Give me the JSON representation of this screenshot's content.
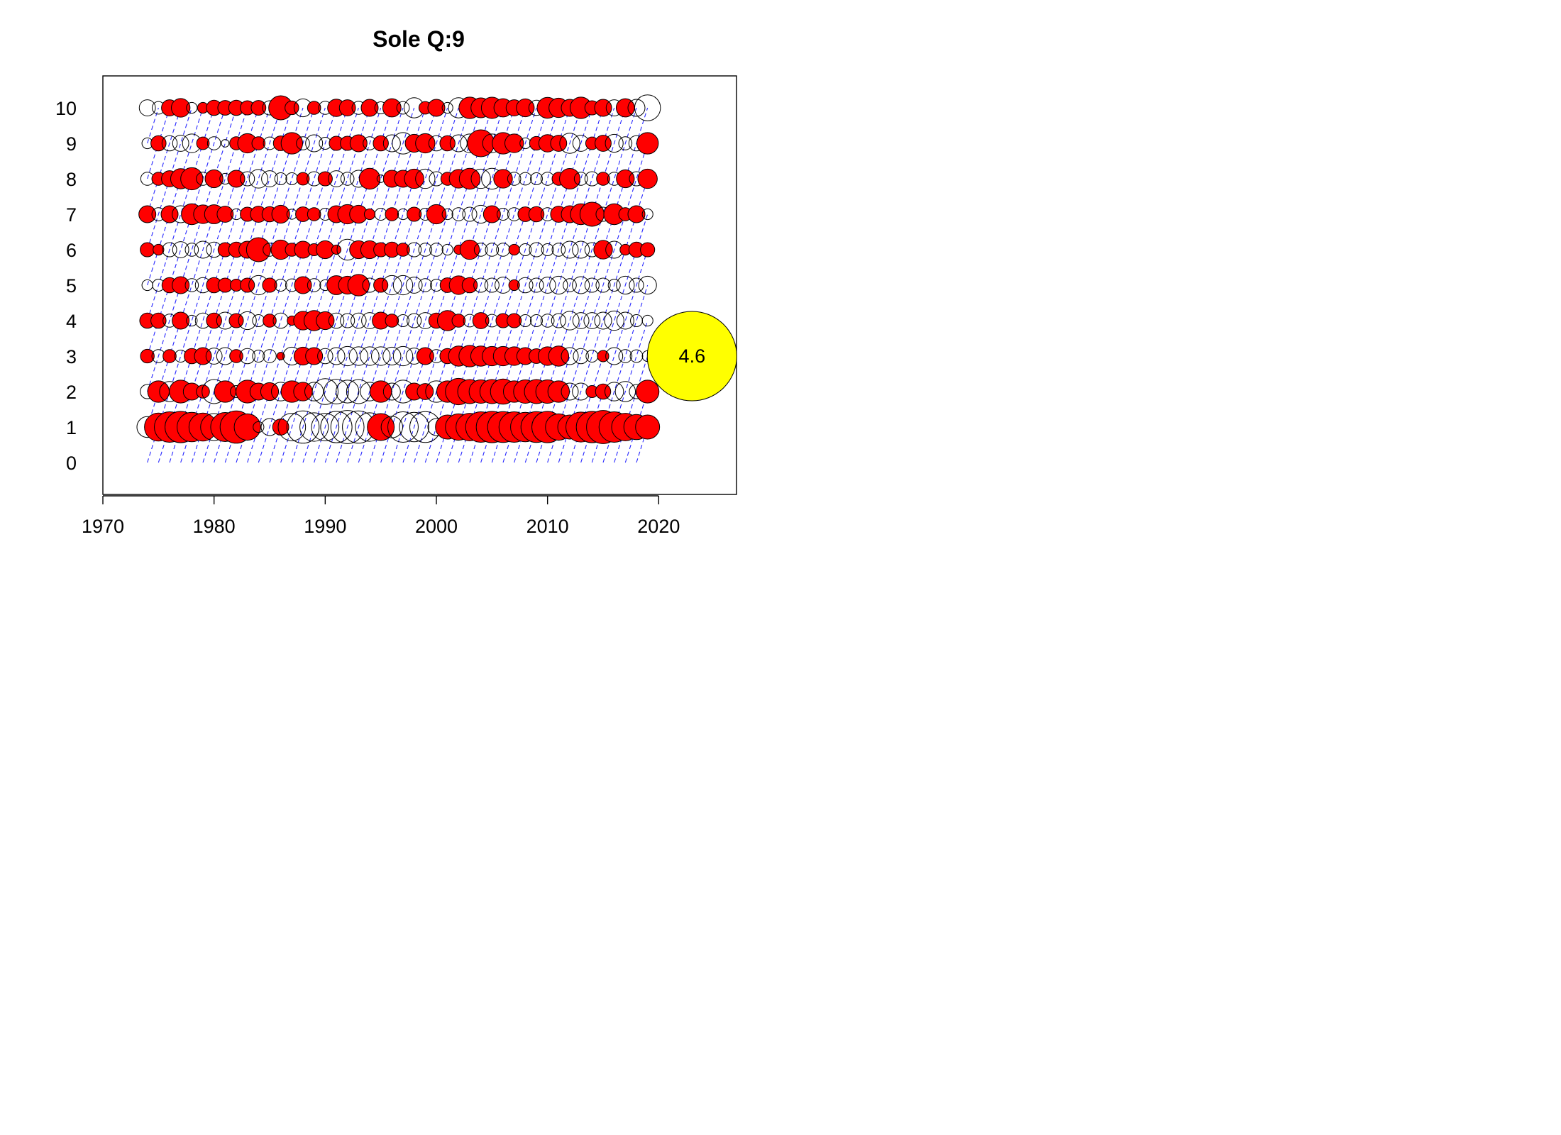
{
  "chart_data": {
    "type": "scatter",
    "subtype": "bubble-residual",
    "title": "Sole Q:9",
    "xlabel": "",
    "ylabel": "",
    "xlim": [
      1970,
      2027
    ],
    "ylim": [
      -0.9,
      10.9
    ],
    "x_ticks": [
      1970,
      1980,
      1990,
      2000,
      2010,
      2020
    ],
    "y_ticks": [
      0,
      1,
      2,
      3,
      4,
      5,
      6,
      7,
      8,
      9,
      10
    ],
    "years": [
      1974,
      1975,
      1976,
      1977,
      1978,
      1979,
      1980,
      1981,
      1982,
      1983,
      1984,
      1985,
      1986,
      1987,
      1988,
      1989,
      1990,
      1991,
      1992,
      1993,
      1994,
      1995,
      1996,
      1997,
      1998,
      1999,
      2000,
      2001,
      2002,
      2003,
      2004,
      2005,
      2006,
      2007,
      2008,
      2009,
      2010,
      2011,
      2012,
      2013,
      2014,
      2015,
      2016,
      2017,
      2018,
      2019
    ],
    "ages": [
      1,
      2,
      3,
      4,
      5,
      6,
      7,
      8,
      9,
      10
    ],
    "positive_color": "#ff0000",
    "negative_color": "#ffffff",
    "outline_color": "#000000",
    "cohort_line_color": "#0000ff",
    "cohort_lines": true,
    "key_bubble": {
      "value": 4.6,
      "label": "4.6",
      "age": 3,
      "year": 2023,
      "color": "#ffff00"
    },
    "series": [
      {
        "age": 10,
        "residuals": [
          -0.9,
          -0.55,
          0.9,
          1.2,
          -0.4,
          0.4,
          0.8,
          0.75,
          0.8,
          0.7,
          0.75,
          -0.7,
          2.0,
          0.65,
          -1.1,
          0.6,
          -0.6,
          1.05,
          0.9,
          -0.6,
          1.0,
          -0.5,
          1.15,
          -0.55,
          -1.4,
          0.55,
          1.0,
          -0.4,
          -1.4,
          1.6,
          1.35,
          1.55,
          1.15,
          0.9,
          1.1,
          -0.8,
          1.5,
          1.3,
          1.0,
          1.6,
          0.7,
          1.0,
          -0.9,
          1.15,
          -1.0,
          -2.3
        ]
      },
      {
        "age": 9,
        "residuals": [
          -0.4,
          0.8,
          -0.8,
          -0.9,
          -1.2,
          0.55,
          -0.6,
          -0.2,
          0.6,
          1.3,
          0.6,
          -0.55,
          0.75,
          1.6,
          -0.6,
          -1.0,
          -0.5,
          0.7,
          0.7,
          1.0,
          -0.6,
          0.8,
          -1.0,
          -1.6,
          1.1,
          1.3,
          -0.8,
          0.8,
          -1.0,
          -1.2,
          2.5,
          -1.2,
          1.6,
          1.2,
          -0.4,
          0.65,
          1.05,
          0.9,
          -1.4,
          -0.9,
          0.55,
          0.9,
          -1.1,
          -0.6,
          -0.8,
          1.6
        ]
      },
      {
        "age": 8,
        "residuals": [
          -0.6,
          0.6,
          0.9,
          1.4,
          1.7,
          -0.6,
          1.1,
          -0.4,
          1.0,
          -0.7,
          -1.2,
          -0.9,
          -0.5,
          -0.5,
          0.55,
          -0.7,
          0.7,
          -0.9,
          -0.6,
          -1.0,
          1.5,
          -0.2,
          1.0,
          1.0,
          1.3,
          -1.3,
          -0.7,
          0.6,
          1.2,
          1.5,
          -1.3,
          -1.5,
          1.2,
          -0.6,
          -0.55,
          -0.5,
          -0.6,
          0.6,
          1.45,
          -0.6,
          -0.7,
          0.6,
          -0.6,
          1.1,
          -0.7,
          1.3
        ]
      },
      {
        "age": 7,
        "residuals": [
          1.0,
          -0.6,
          1.0,
          -1.0,
          1.5,
          1.2,
          1.25,
          0.9,
          -0.4,
          0.7,
          0.9,
          0.8,
          1.1,
          -0.35,
          0.75,
          0.6,
          -0.5,
          1.0,
          1.3,
          1.1,
          0.4,
          -0.5,
          0.6,
          -0.4,
          0.7,
          -0.5,
          1.3,
          -0.4,
          -0.6,
          -0.7,
          -1.1,
          1.0,
          -0.5,
          -0.6,
          0.75,
          0.8,
          -0.6,
          0.9,
          1.0,
          1.5,
          2.0,
          -0.7,
          1.5,
          0.6,
          1.0,
          -0.4
        ]
      },
      {
        "age": 6,
        "residuals": [
          0.7,
          0.4,
          -0.7,
          -0.9,
          -0.6,
          -1.0,
          -0.8,
          0.7,
          0.8,
          1.0,
          2.0,
          -0.6,
          1.3,
          0.6,
          1.0,
          0.5,
          1.1,
          0.3,
          -1.5,
          1.1,
          1.1,
          0.7,
          0.8,
          0.6,
          -0.7,
          -0.6,
          -0.6,
          -0.4,
          0.3,
          1.3,
          -0.6,
          -0.6,
          -0.6,
          0.4,
          -0.5,
          -0.7,
          -0.5,
          -0.6,
          -1.0,
          -1.0,
          -0.7,
          1.2,
          -1.0,
          0.4,
          0.8,
          0.7
        ]
      },
      {
        "age": 5,
        "residuals": [
          -0.4,
          -0.5,
          0.8,
          1.0,
          -0.6,
          -0.8,
          0.8,
          0.7,
          0.5,
          0.7,
          -1.3,
          0.7,
          -0.5,
          -0.55,
          1.0,
          -0.6,
          -0.4,
          1.25,
          1.1,
          1.6,
          -0.7,
          0.7,
          -1.3,
          -1.3,
          -0.9,
          -0.6,
          -0.5,
          0.75,
          1.2,
          0.8,
          -0.7,
          -0.7,
          -0.9,
          0.4,
          -0.8,
          -0.7,
          -0.9,
          -1.1,
          -0.6,
          -1.0,
          -0.7,
          -0.7,
          -0.5,
          -1.1,
          -0.7,
          -1.1
        ]
      },
      {
        "age": 4,
        "residuals": [
          0.8,
          0.8,
          -0.6,
          1.0,
          -0.4,
          -0.8,
          0.8,
          -1.0,
          0.7,
          -1.1,
          -0.5,
          0.6,
          -0.8,
          0.3,
          1.2,
          1.4,
          1.1,
          -0.8,
          -0.7,
          -0.8,
          -0.9,
          1.0,
          0.6,
          -0.5,
          -0.7,
          -0.9,
          0.8,
          1.4,
          0.6,
          -0.55,
          0.9,
          -0.55,
          0.7,
          0.7,
          -0.5,
          -0.5,
          -0.6,
          -0.7,
          -1.2,
          -0.9,
          -0.9,
          -1.0,
          -1.3,
          -1.0,
          -0.5,
          -0.4
        ]
      },
      {
        "age": 3,
        "residuals": [
          0.65,
          -0.6,
          0.6,
          -0.5,
          0.8,
          1.0,
          -0.9,
          -1.0,
          0.6,
          -0.8,
          -0.5,
          -0.6,
          0.2,
          -1.1,
          1.1,
          1.0,
          -0.8,
          -1.0,
          -1.3,
          -1.2,
          -1.2,
          -1.2,
          -1.1,
          -1.3,
          -0.9,
          1.0,
          -0.6,
          0.8,
          1.4,
          1.6,
          1.4,
          1.3,
          1.3,
          1.2,
          1.0,
          0.75,
          1.2,
          1.4,
          -1.0,
          -0.8,
          -0.5,
          0.45,
          -1.0,
          -0.6,
          -0.55,
          -0.4
        ]
      },
      {
        "age": 2,
        "residuals": [
          -0.7,
          1.6,
          -1.4,
          1.8,
          1.0,
          0.6,
          -2.0,
          1.6,
          -0.5,
          1.8,
          1.0,
          1.1,
          -1.2,
          1.6,
          1.2,
          -1.2,
          -2.3,
          -2.1,
          -1.8,
          -2.0,
          -1.2,
          1.6,
          -1.0,
          -1.8,
          1.0,
          0.9,
          -1.6,
          1.6,
          2.4,
          2.0,
          1.9,
          2.0,
          2.2,
          1.6,
          1.9,
          2.0,
          1.9,
          1.6,
          -1.0,
          -1.0,
          0.5,
          0.8,
          -1.2,
          -1.4,
          -0.7,
          1.8
        ]
      },
      {
        "age": 1,
        "residuals": [
          -1.5,
          2.7,
          3.2,
          3.4,
          3.0,
          2.7,
          -2.5,
          2.9,
          3.6,
          2.4,
          -0.4,
          -1.0,
          0.9,
          -2.6,
          -3.6,
          -2.8,
          -2.6,
          -3.4,
          -3.8,
          -3.6,
          -2.8,
          2.5,
          -1.6,
          -3.2,
          -3.0,
          -3.3,
          -1.0,
          2.0,
          2.4,
          2.6,
          3.2,
          3.4,
          3.3,
          3.2,
          3.0,
          3.3,
          3.4,
          2.4,
          2.0,
          3.1,
          3.4,
          3.8,
          3.2,
          2.6,
          2.2,
          2.0
        ]
      }
    ]
  }
}
